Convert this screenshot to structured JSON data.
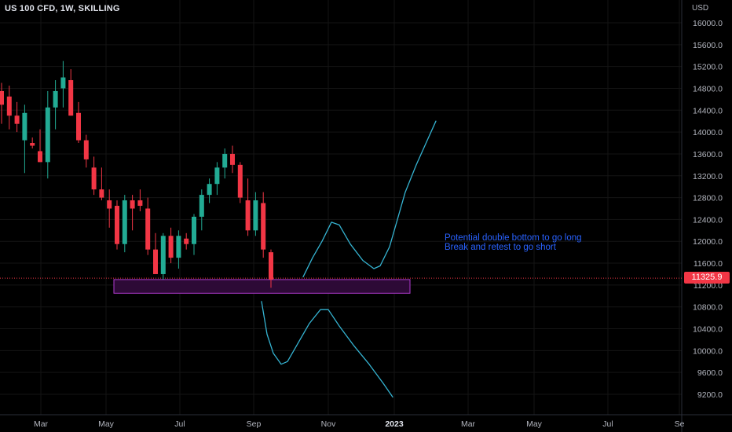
{
  "header": {
    "title": "US 100 CFD, 1W, SKILLING",
    "currency": "USD"
  },
  "price_label": "11325.9",
  "annotations": [
    "Potential double bottom to go long",
    "Break and retest to go short"
  ],
  "colors": {
    "background": "#000000",
    "up": "#22ab94",
    "down": "#f23645",
    "zone_border": "#b03bd0",
    "zone_fill": "#2d0a36",
    "path": "#35b3d1",
    "annotation": "#2962ff"
  },
  "chart_data": {
    "type": "candlestick",
    "title": "US 100 CFD, 1W, SKILLING",
    "ylabel": "USD",
    "ylim": [
      9000,
      16200
    ],
    "y_ticks": [
      "16000.0",
      "15600.0",
      "15200.0",
      "14800.0",
      "14400.0",
      "14000.0",
      "13600.0",
      "13200.0",
      "12800.0",
      "12400.0",
      "12000.0",
      "11600.0",
      "11200.0",
      "10800.0",
      "10400.0",
      "10000.0",
      "9600.0",
      "9200.0"
    ],
    "x_ticks": [
      "Mar",
      "May",
      "Jul",
      "Sep",
      "Nov",
      "2023",
      "Mar",
      "May",
      "Jul",
      "Se"
    ],
    "last_price": 11325.9,
    "candles": [
      {
        "o": 14750,
        "h": 14900,
        "l": 14150,
        "c": 14500
      },
      {
        "o": 14650,
        "h": 14850,
        "l": 14050,
        "c": 14300
      },
      {
        "o": 14300,
        "h": 14550,
        "l": 14000,
        "c": 14150
      },
      {
        "o": 13850,
        "h": 14500,
        "l": 13250,
        "c": 14350
      },
      {
        "o": 13800,
        "h": 13900,
        "l": 13700,
        "c": 13750
      },
      {
        "o": 13650,
        "h": 14050,
        "l": 13450,
        "c": 13450
      },
      {
        "o": 13450,
        "h": 14750,
        "l": 13150,
        "c": 14450
      },
      {
        "o": 14450,
        "h": 14950,
        "l": 14050,
        "c": 14750
      },
      {
        "o": 14800,
        "h": 15300,
        "l": 14450,
        "c": 15000
      },
      {
        "o": 14950,
        "h": 15150,
        "l": 14300,
        "c": 14300
      },
      {
        "o": 14350,
        "h": 14550,
        "l": 13800,
        "c": 13850
      },
      {
        "o": 13850,
        "h": 13950,
        "l": 13350,
        "c": 13500
      },
      {
        "o": 13350,
        "h": 13550,
        "l": 12850,
        "c": 12950
      },
      {
        "o": 12950,
        "h": 13350,
        "l": 12750,
        "c": 12800
      },
      {
        "o": 12750,
        "h": 12950,
        "l": 12250,
        "c": 12600
      },
      {
        "o": 12650,
        "h": 12750,
        "l": 11850,
        "c": 11950
      },
      {
        "o": 11950,
        "h": 12850,
        "l": 11800,
        "c": 12750
      },
      {
        "o": 12750,
        "h": 12850,
        "l": 12200,
        "c": 12600
      },
      {
        "o": 12750,
        "h": 12950,
        "l": 12550,
        "c": 12650
      },
      {
        "o": 12600,
        "h": 12800,
        "l": 11750,
        "c": 11850
      },
      {
        "o": 11850,
        "h": 12150,
        "l": 11450,
        "c": 11400
      },
      {
        "o": 11400,
        "h": 12150,
        "l": 11300,
        "c": 12100
      },
      {
        "o": 12100,
        "h": 12250,
        "l": 11600,
        "c": 11700
      },
      {
        "o": 11700,
        "h": 12200,
        "l": 11500,
        "c": 12100
      },
      {
        "o": 12050,
        "h": 12150,
        "l": 11850,
        "c": 11950
      },
      {
        "o": 11950,
        "h": 12500,
        "l": 11750,
        "c": 12450
      },
      {
        "o": 12450,
        "h": 12950,
        "l": 12200,
        "c": 12850
      },
      {
        "o": 12850,
        "h": 13150,
        "l": 12700,
        "c": 13050
      },
      {
        "o": 13050,
        "h": 13450,
        "l": 12850,
        "c": 13350
      },
      {
        "o": 13350,
        "h": 13700,
        "l": 13150,
        "c": 13600
      },
      {
        "o": 13600,
        "h": 13750,
        "l": 13250,
        "c": 13400
      },
      {
        "o": 13400,
        "h": 13450,
        "l": 12700,
        "c": 12800
      },
      {
        "o": 12750,
        "h": 13150,
        "l": 12100,
        "c": 12200
      },
      {
        "o": 12200,
        "h": 12900,
        "l": 12100,
        "c": 12750
      },
      {
        "o": 12700,
        "h": 12900,
        "l": 11700,
        "c": 11850
      },
      {
        "o": 11800,
        "h": 11850,
        "l": 11150,
        "c": 11300
      }
    ],
    "zone": {
      "x_from": "May",
      "x_to": "2023",
      "y_top": 11300,
      "y_bottom": 11050
    },
    "scenario_paths": [
      {
        "label": "Potential double bottom to go long",
        "points": [
          [
            386,
            11350
          ],
          [
            398,
            11700
          ],
          [
            410,
            12000
          ],
          [
            422,
            12350
          ],
          [
            432,
            12300
          ],
          [
            446,
            11950
          ],
          [
            462,
            11650
          ],
          [
            476,
            11500
          ],
          [
            484,
            11550
          ],
          [
            496,
            11900
          ],
          [
            506,
            12400
          ],
          [
            516,
            12900
          ],
          [
            530,
            13400
          ],
          [
            544,
            13850
          ],
          [
            555,
            14200
          ]
        ]
      },
      {
        "label": "Break and retest to go short",
        "points": [
          [
            333,
            10900
          ],
          [
            340,
            10300
          ],
          [
            348,
            9950
          ],
          [
            358,
            9750
          ],
          [
            366,
            9800
          ],
          [
            378,
            10100
          ],
          [
            394,
            10500
          ],
          [
            408,
            10750
          ],
          [
            418,
            10750
          ],
          [
            432,
            10450
          ],
          [
            450,
            10100
          ],
          [
            470,
            9750
          ],
          [
            488,
            9400
          ],
          [
            500,
            9150
          ]
        ]
      }
    ]
  }
}
